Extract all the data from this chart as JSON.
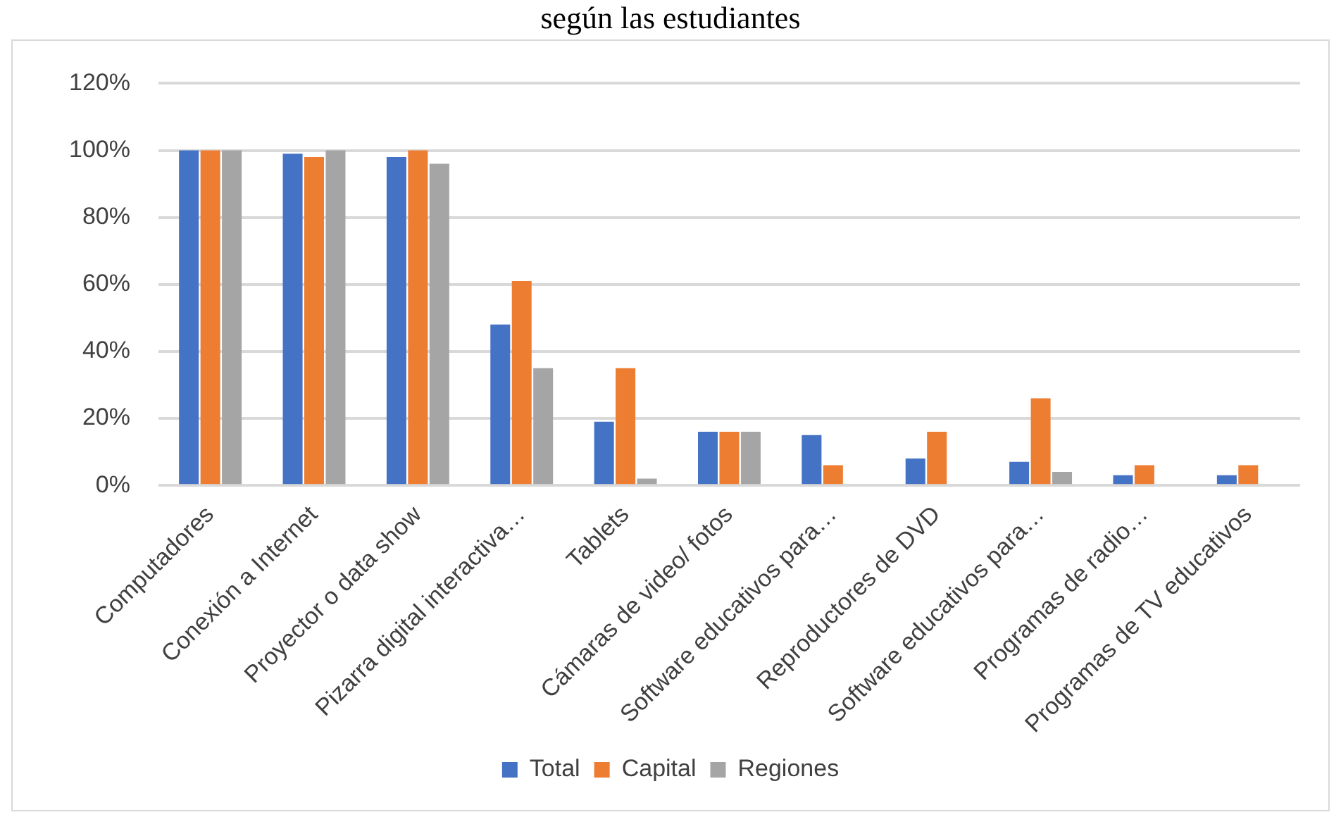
{
  "chart_data": {
    "type": "bar",
    "title": "según las estudiantes",
    "categories": [
      "Computadores",
      "Conexión a Internet",
      "Proyector o data show",
      "Pizarra digital interactiva…",
      "Tablets",
      "Cámaras de video/ fotos",
      "Software educativos para…",
      "Reproductores de DVD",
      "Software educativos para…",
      "Programas de radio…",
      "Programas de TV educativos"
    ],
    "series": [
      {
        "name": "Total",
        "color": "#4472c4",
        "values": [
          100,
          99,
          98,
          48,
          19,
          16,
          15,
          8,
          7,
          3,
          3
        ]
      },
      {
        "name": "Capital",
        "color": "#ed7d31",
        "values": [
          100,
          98,
          100,
          61,
          35,
          16,
          6,
          16,
          26,
          6,
          6
        ]
      },
      {
        "name": "Regiones",
        "color": "#a5a5a5",
        "values": [
          100,
          100,
          96,
          35,
          2,
          16,
          0,
          0,
          4,
          0,
          0
        ]
      }
    ],
    "ylim": [
      0,
      120
    ],
    "yticks": [
      {
        "value": 0,
        "label": "0%"
      },
      {
        "value": 20,
        "label": "20%"
      },
      {
        "value": 40,
        "label": "40%"
      },
      {
        "value": 60,
        "label": "60%"
      },
      {
        "value": 80,
        "label": "80%"
      },
      {
        "value": 100,
        "label": "100%"
      },
      {
        "value": 120,
        "label": "120%"
      }
    ],
    "grid": "y",
    "legend": "bottom"
  }
}
